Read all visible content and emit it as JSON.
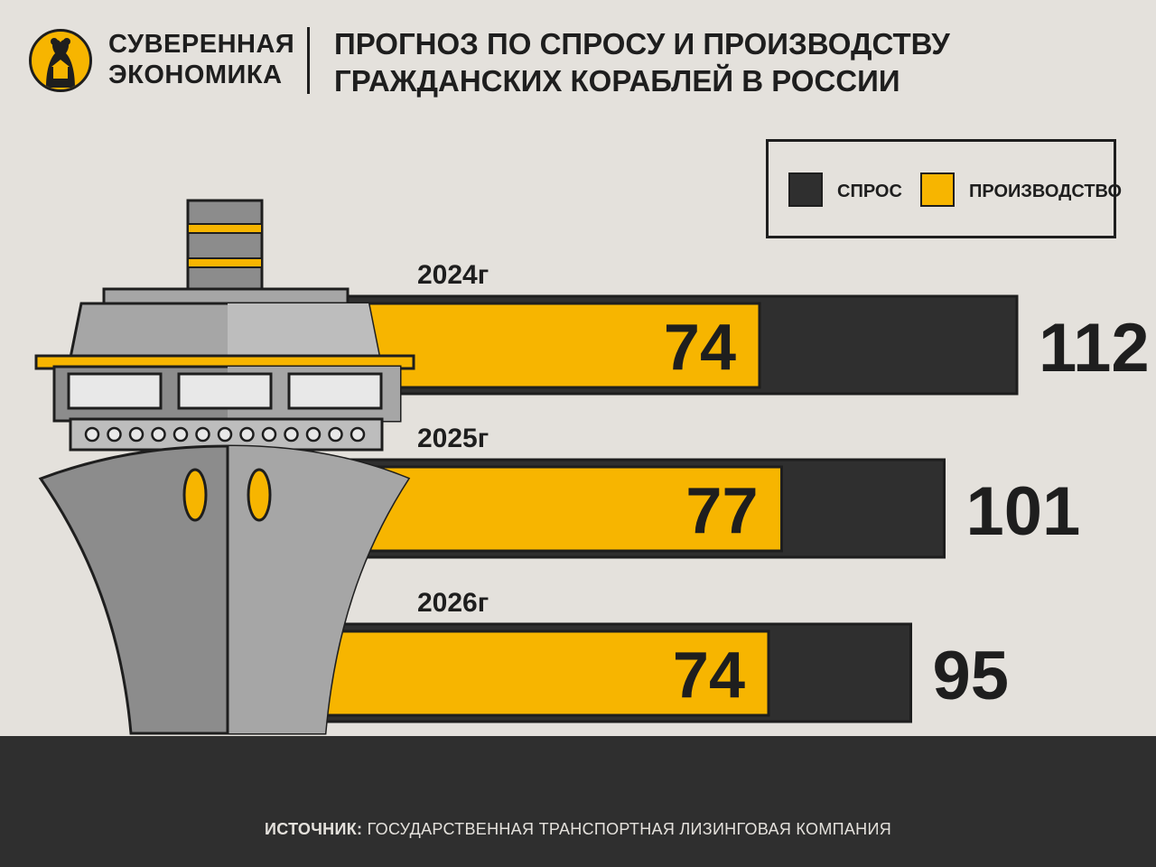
{
  "brand": {
    "line1": "СУВЕРЕННАЯ",
    "line2": "ЭКОНОМИКА",
    "logo_icon": "bear-icon"
  },
  "headline": "ПРОГНОЗ ПО СПРОСУ И ПРОИЗВОДСТВУ ГРАЖДАНСКИХ КОРАБЛЕЙ В РОССИИ",
  "legend": {
    "demand": "СПРОС",
    "production": "ПРОИЗВОДСТВО"
  },
  "source": {
    "label": "ИСТОЧНИК:",
    "text": "ГОСУДАРСТВЕННАЯ ТРАНСПОРТНАЯ ЛИЗИНГОВАЯ КОМПАНИЯ"
  },
  "colors": {
    "background": "#e4e1dc",
    "demand": "#2f2f2f",
    "production": "#f7b500",
    "ink": "#1e1e1e",
    "ship_hull": "#8c8c8c",
    "ship_light": "#a6a6a6",
    "sea": "#2f2f2f"
  },
  "chart_data": {
    "type": "bar",
    "orientation": "horizontal",
    "categories": [
      "2024г",
      "2025г",
      "2026г"
    ],
    "series": [
      {
        "name": "СПРОС",
        "values": [
          112,
          101,
          95
        ],
        "color": "#2f2f2f"
      },
      {
        "name": "ПРОИЗВОДСТВО",
        "values": [
          74,
          77,
          74
        ],
        "color": "#f7b500"
      }
    ],
    "value_labels": {
      "demand": [
        "112",
        "101",
        "95"
      ],
      "production": [
        "74",
        "77",
        "74"
      ]
    },
    "title": "ПРОГНОЗ ПО СПРОСУ И ПРОИЗВОДСТВУ ГРАЖДАНСКИХ КОРАБЛЕЙ В РОССИИ",
    "legend_position": "top-right",
    "grid": false,
    "overlay": "ship-illustration"
  }
}
